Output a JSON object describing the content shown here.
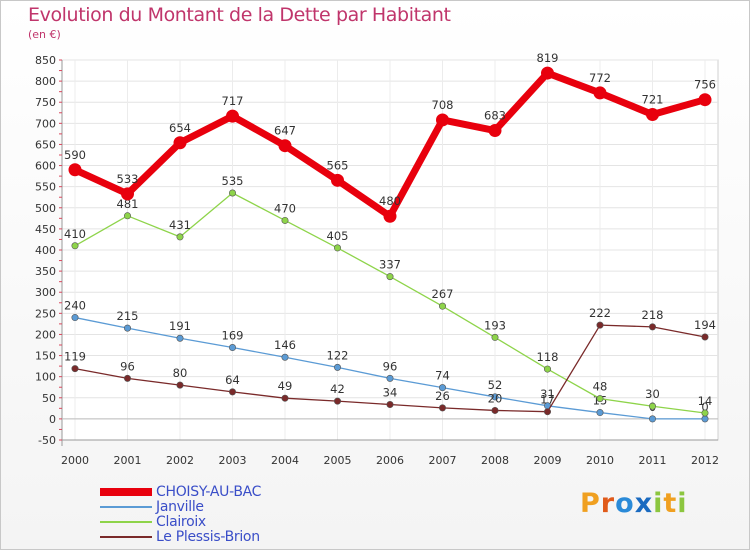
{
  "chart_data": {
    "type": "line",
    "title": "Evolution du Montant de la Dette par Habitant",
    "subtitle": "(en €)",
    "x": [
      "2000",
      "2001",
      "2002",
      "2003",
      "2004",
      "2005",
      "2006",
      "2007",
      "2008",
      "2009",
      "2010",
      "2011",
      "2012"
    ],
    "ylim": [
      -50,
      850
    ],
    "yticks": [
      -50,
      0,
      50,
      100,
      150,
      200,
      250,
      300,
      350,
      400,
      450,
      500,
      550,
      600,
      650,
      700,
      750,
      800,
      850
    ],
    "grid": true,
    "legend_position": "bottom-left",
    "series": [
      {
        "name": "CHOISY-AU-BAC",
        "color": "#e8000d",
        "values": [
          590,
          533,
          654,
          717,
          647,
          565,
          480,
          708,
          683,
          819,
          772,
          721,
          756
        ],
        "labels": [
          "590",
          "533",
          "654",
          "717",
          "647",
          "565",
          "480",
          "708",
          "683",
          "819",
          "772",
          "721",
          "756"
        ]
      },
      {
        "name": "Janville",
        "color": "#5b9bd5",
        "values": [
          240,
          215,
          191,
          169,
          146,
          122,
          96,
          74,
          52,
          31,
          15,
          0,
          0
        ],
        "labels": [
          "240",
          "215",
          "191",
          "169",
          "146",
          "122",
          "96",
          "74",
          "52",
          "31",
          "15",
          "0",
          "0"
        ]
      },
      {
        "name": "Clairoix",
        "color": "#8ed44a",
        "values": [
          410,
          481,
          431,
          535,
          470,
          405,
          337,
          267,
          193,
          118,
          48,
          30,
          14
        ],
        "labels": [
          "410",
          "481",
          "431",
          "535",
          "470",
          "405",
          "337",
          "267",
          "193",
          "118",
          "48",
          "30",
          "14"
        ]
      },
      {
        "name": "Le Plessis-Brion",
        "color": "#7a2a2a",
        "values": [
          119,
          96,
          80,
          64,
          49,
          42,
          34,
          26,
          20,
          17,
          222,
          218,
          194
        ],
        "labels": [
          "119",
          "96",
          "80",
          "64",
          "49",
          "42",
          "34",
          "26",
          "20",
          "17",
          "222",
          "218",
          "194"
        ]
      }
    ]
  },
  "logo": {
    "text": "Proxiti",
    "letters": [
      {
        "ch": "P",
        "color": "#f0a020"
      },
      {
        "ch": "r",
        "color": "#e05a1a"
      },
      {
        "ch": "o",
        "color": "#2a8ad8"
      },
      {
        "ch": "x",
        "color": "#1a6ac0"
      },
      {
        "ch": "i",
        "color": "#8cc63f"
      },
      {
        "ch": "t",
        "color": "#f0a020"
      },
      {
        "ch": "i",
        "color": "#8cc63f"
      }
    ]
  }
}
